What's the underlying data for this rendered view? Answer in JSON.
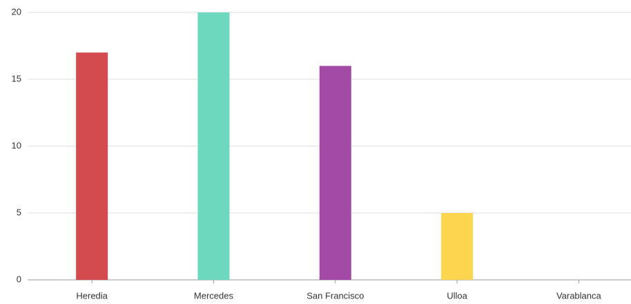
{
  "chart_data": {
    "type": "bar",
    "categories": [
      "Heredia",
      "Mercedes",
      "San Francisco",
      "Ulloa",
      "Varablanca"
    ],
    "values": [
      17,
      20,
      16,
      5,
      0
    ],
    "colors": [
      "#d44b4f",
      "#6ed8bf",
      "#a24aa6",
      "#fdd54f",
      null
    ],
    "ylim": [
      0,
      20
    ],
    "yticks": [
      0,
      5,
      10,
      15,
      20
    ],
    "grid": true
  }
}
